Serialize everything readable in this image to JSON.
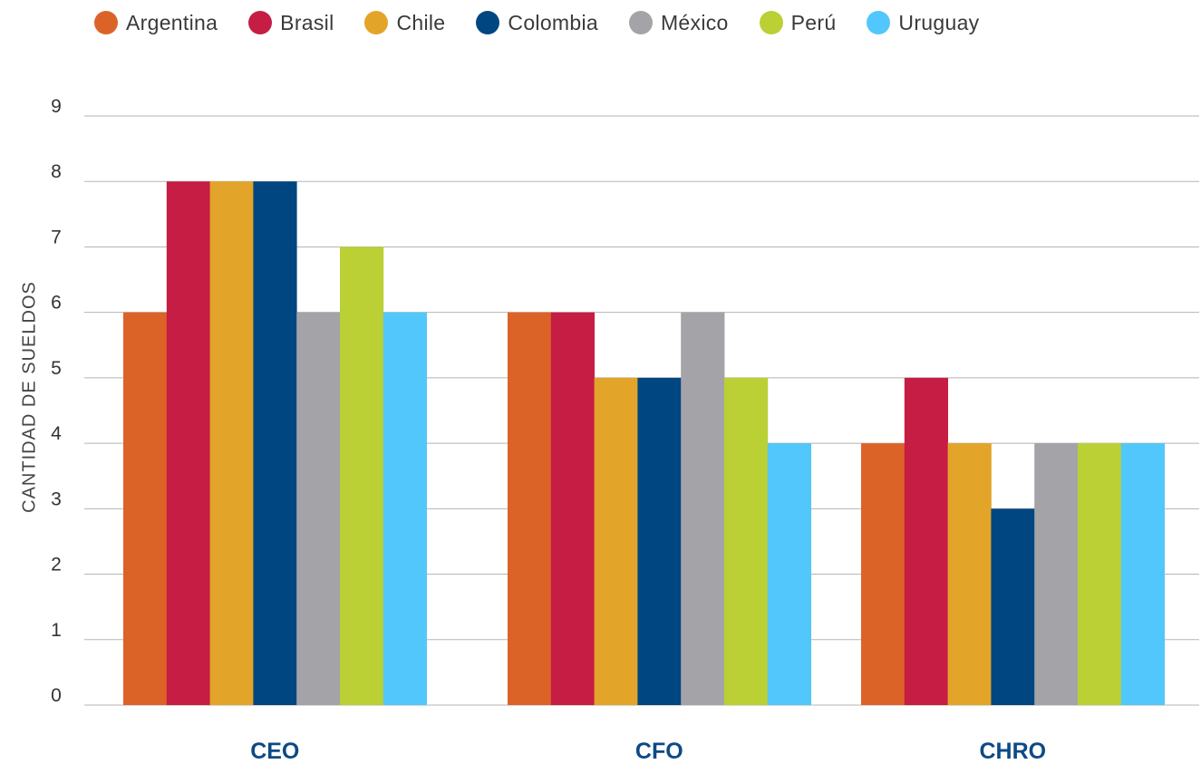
{
  "chart_data": {
    "type": "bar",
    "categories": [
      "CEO",
      "CFO",
      "CHRO"
    ],
    "series": [
      {
        "name": "Argentina",
        "color": "#dc6328",
        "values": [
          6,
          6,
          4
        ]
      },
      {
        "name": "Brasil",
        "color": "#c61d44",
        "values": [
          8,
          6,
          5
        ]
      },
      {
        "name": "Chile",
        "color": "#e3a42a",
        "values": [
          8,
          5,
          4
        ]
      },
      {
        "name": "Colombia",
        "color": "#004680",
        "values": [
          8,
          5,
          3
        ]
      },
      {
        "name": "México",
        "color": "#a4a3a8",
        "values": [
          6,
          6,
          4
        ]
      },
      {
        "name": "Perú",
        "color": "#bad035",
        "values": [
          7,
          5,
          4
        ]
      },
      {
        "name": "Uruguay",
        "color": "#52c7fb",
        "values": [
          6,
          4,
          4
        ]
      }
    ],
    "title": "",
    "xlabel": "",
    "ylabel": "CANTIDAD DE SUELDOS",
    "ylim": [
      0,
      9
    ],
    "yticks": [
      "0",
      "1",
      "2",
      "3",
      "4",
      "5",
      "6",
      "7",
      "8",
      "9"
    ],
    "grid": true,
    "legend_position": "top"
  }
}
